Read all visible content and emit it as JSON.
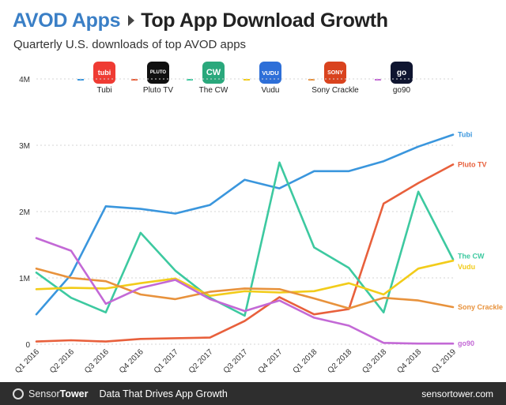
{
  "header": {
    "section": "AVOD Apps",
    "title": "Top App Download Growth"
  },
  "chart_data": {
    "type": "line",
    "title": "AVOD Apps  Top App Download Growth",
    "subtitle": "Quarterly U.S. downloads of top AVOD apps",
    "xlabel": "",
    "ylabel": "",
    "ylim": [
      0,
      4000000
    ],
    "yticks": [
      0,
      1000000,
      2000000,
      3000000,
      4000000
    ],
    "ytick_labels": [
      "0",
      "1M",
      "2M",
      "3M",
      "4M"
    ],
    "grid": "horizontal dashed",
    "legend": "top",
    "categories": [
      "Q1 2016",
      "Q2 2016",
      "Q3 2016",
      "Q4 2016",
      "Q1 2017",
      "Q2 2017",
      "Q3 2017",
      "Q4 2017",
      "Q1 2018",
      "Q2 2018",
      "Q3 2018",
      "Q4 2018",
      "Q1 2019"
    ],
    "series": [
      {
        "name": "Tubi",
        "color": "#3a96dd",
        "values": [
          450000,
          1050000,
          2080000,
          2040000,
          1970000,
          2100000,
          2480000,
          2350000,
          2610000,
          2610000,
          2760000,
          2980000,
          3160000
        ]
      },
      {
        "name": "Pluto TV",
        "color": "#e8603c",
        "values": [
          40000,
          60000,
          40000,
          80000,
          90000,
          100000,
          350000,
          710000,
          450000,
          530000,
          2120000,
          2430000,
          2710000
        ]
      },
      {
        "name": "The CW",
        "color": "#3dc9a0",
        "values": [
          1080000,
          700000,
          480000,
          1680000,
          1110000,
          700000,
          430000,
          2740000,
          1460000,
          1150000,
          480000,
          2300000,
          1280000
        ]
      },
      {
        "name": "Vudu",
        "color": "#f2cc1a",
        "values": [
          830000,
          850000,
          840000,
          920000,
          990000,
          730000,
          800000,
          780000,
          800000,
          920000,
          750000,
          1140000,
          1260000
        ]
      },
      {
        "name": "Sony Crackle",
        "color": "#e8923c",
        "values": [
          1140000,
          1000000,
          950000,
          750000,
          680000,
          790000,
          840000,
          830000,
          690000,
          540000,
          700000,
          660000,
          560000
        ]
      },
      {
        "name": "go90",
        "color": "#c369d6",
        "values": [
          1600000,
          1410000,
          610000,
          850000,
          970000,
          680000,
          500000,
          660000,
          400000,
          280000,
          20000,
          10000,
          10000
        ]
      }
    ]
  },
  "legend": {
    "items": [
      {
        "name": "Tubi",
        "icon_text": "tubi",
        "icon_color": "#ef3b33",
        "line_color": "#3a96dd"
      },
      {
        "name": "Pluto TV",
        "icon_text": "PLUTO",
        "icon_color": "#111111",
        "line_color": "#e8603c"
      },
      {
        "name": "The CW",
        "icon_text": "CW",
        "icon_color": "#2aa87c",
        "line_color": "#3dc9a0"
      },
      {
        "name": "Vudu",
        "icon_text": "VUDU",
        "icon_color": "#2e6fd8",
        "line_color": "#f2cc1a"
      },
      {
        "name": "Sony Crackle",
        "icon_text": "SONY",
        "icon_color": "#d9431e",
        "line_color": "#e8923c"
      },
      {
        "name": "go90",
        "icon_text": "go",
        "icon_color": "#0f1530",
        "line_color": "#c369d6"
      }
    ]
  },
  "footer": {
    "brand_a": "Sensor",
    "brand_b": "Tower",
    "tagline": "Data That Drives App Growth",
    "url": "sensortower.com"
  }
}
